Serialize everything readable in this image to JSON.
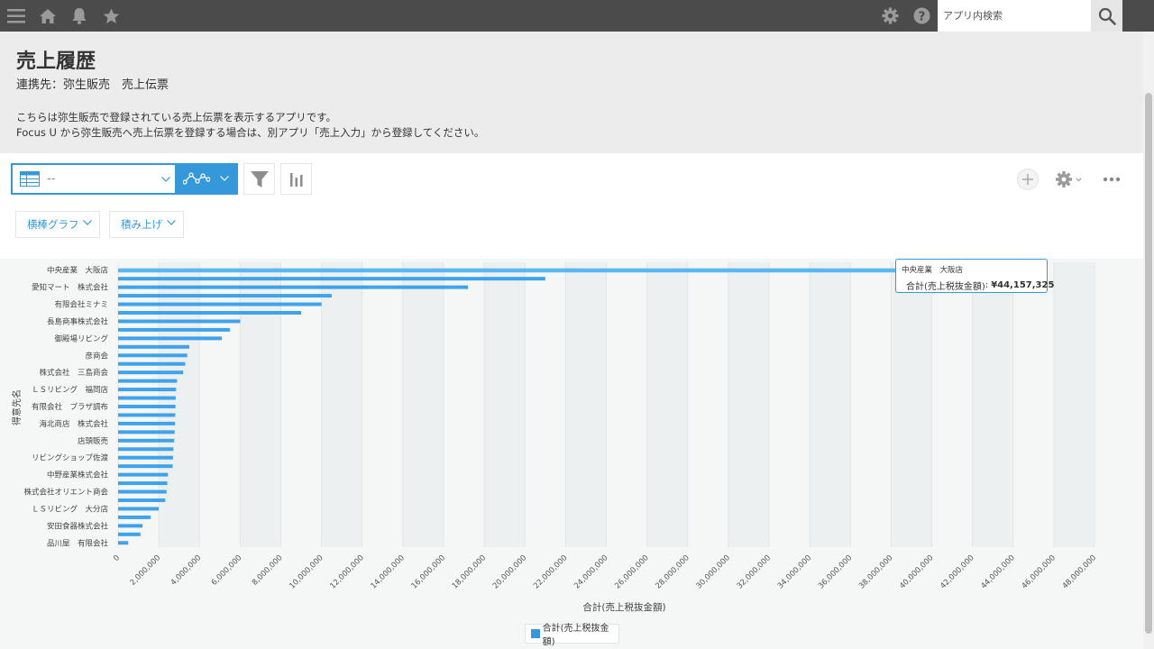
{
  "topbar": {
    "search_placeholder": "アプリ内検索",
    "icons": [
      "menu-icon",
      "home-icon",
      "bell-icon",
      "star-icon",
      "gear-icon",
      "help-icon",
      "search-icon"
    ]
  },
  "header": {
    "title": "売上履歴",
    "subtitle": "連携先：弥生販売　売上伝票",
    "description": [
      "こちらは弥生販売で登録されている売上伝票を表示するアプリです。",
      "Focus U から弥生販売へ売上伝票を登録する場合は、別アプリ「売上入力」から登録してください。"
    ]
  },
  "toolbar": {
    "view_select_value": "--",
    "chart_type": "横棒グラフ",
    "chart_mode": "積み上げ"
  },
  "tooltip": {
    "category": "中央産業　大阪店",
    "series": "合計(売上税抜金額)",
    "value": "¥44,157,325"
  },
  "colors": {
    "accent": "#3498db",
    "bar": "#3ea3ec",
    "bar_highlight": "#5ab7f5",
    "topbar": "#4b4b4b"
  },
  "chart_data": {
    "type": "bar",
    "orientation": "horizontal",
    "stacked": true,
    "xlabel": "合計(売上税抜金額)",
    "ylabel": "得意先名",
    "xlim": [
      0,
      48000000
    ],
    "xticks": [
      "0",
      "2,000,000",
      "4,000,000",
      "6,000,000",
      "8,000,000",
      "10,000,000",
      "12,000,000",
      "14,000,000",
      "16,000,000",
      "18,000,000",
      "20,000,000",
      "22,000,000",
      "24,000,000",
      "26,000,000",
      "28,000,000",
      "30,000,000",
      "32,000,000",
      "34,000,000",
      "36,000,000",
      "38,000,000",
      "40,000,000",
      "42,000,000",
      "44,000,000",
      "46,000,000",
      "48,000,000"
    ],
    "categories": [
      "中央産業　大阪店",
      "",
      "愛知マート　株式会社",
      "",
      "有限会社ミナミ",
      "",
      "長島商事株式会社",
      "",
      "御殿場リビング",
      "",
      "彦商会",
      "",
      "株式会社　三島商会",
      "",
      "ＬＳリビング　福岡店",
      "",
      "有限会社　プラザ調布",
      "",
      "海北商店　株式会社",
      "",
      "店頭販売",
      "",
      "リビングショップ佐渡",
      "",
      "中野産業株式会社",
      "",
      "株式会社オリエント商会",
      "",
      "ＬＳリビング　大分店",
      "",
      "安田食器株式会社",
      "",
      "品川屋　有限会社"
    ],
    "series": [
      {
        "name": "合計(売上税抜金額)",
        "values": [
          44157325,
          21000000,
          17200000,
          10500000,
          10000000,
          9000000,
          6000000,
          5500000,
          5100000,
          3500000,
          3400000,
          3300000,
          3200000,
          2900000,
          2850000,
          2830000,
          2820000,
          2810000,
          2800000,
          2780000,
          2760000,
          2720000,
          2700000,
          2680000,
          2450000,
          2420000,
          2380000,
          2320000,
          2000000,
          1600000,
          1200000,
          1100000,
          500000
        ]
      }
    ],
    "legend": "bottom-center",
    "grid": true
  }
}
